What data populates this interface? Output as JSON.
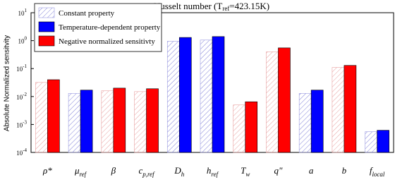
{
  "chart_data": {
    "type": "bar",
    "log_y": true,
    "title": {
      "text": "Nusselt number (T",
      "subscript": "ref",
      "after": "=423.15K)"
    },
    "ylabel": "Absolute Normalized sensitvity",
    "categories": [
      {
        "symbol": "ρ*"
      },
      {
        "symbol": "μ",
        "subscript": "ref"
      },
      {
        "symbol": "β"
      },
      {
        "symbol": "c",
        "subscript": "p,ref"
      },
      {
        "symbol": "D",
        "subscript": "h"
      },
      {
        "symbol": "h",
        "subscript": "ref"
      },
      {
        "symbol": "T",
        "subscript": "w"
      },
      {
        "symbol": "q\""
      },
      {
        "symbol": "a"
      },
      {
        "symbol": "b"
      },
      {
        "symbol": "f",
        "subscript": "local"
      }
    ],
    "series": [
      {
        "name": "Constant property",
        "color": "#7f7fd8",
        "hatched": true,
        "values": [
          0.032,
          0.013,
          0.016,
          0.015,
          0.95,
          1.05,
          0.005,
          0.4,
          0.013,
          0.11,
          0.00055
        ]
      },
      {
        "name": "Temperature-dependent property",
        "color": "#0000ff",
        "values": [
          null,
          0.017,
          null,
          null,
          1.3,
          1.4,
          null,
          null,
          0.017,
          null,
          0.00062
        ]
      },
      {
        "name": "Negative normalized sensitivty",
        "color": "#ff0000",
        "values": [
          0.04,
          null,
          0.02,
          0.019,
          null,
          null,
          0.0065,
          0.55,
          null,
          0.13,
          null
        ]
      }
    ],
    "ylim": [
      0.0001,
      10
    ],
    "yticks": [
      {
        "value": 0.0001,
        "base": "10",
        "exponent": "-4"
      },
      {
        "value": 0.001,
        "base": "10",
        "exponent": "-3"
      },
      {
        "value": 0.01,
        "base": "10",
        "exponent": "-2"
      },
      {
        "value": 0.1,
        "base": "10",
        "exponent": "-1"
      },
      {
        "value": 1,
        "base": "10",
        "exponent": "0"
      },
      {
        "value": 10,
        "base": "10",
        "exponent": "1"
      }
    ],
    "legend": "upper left"
  }
}
